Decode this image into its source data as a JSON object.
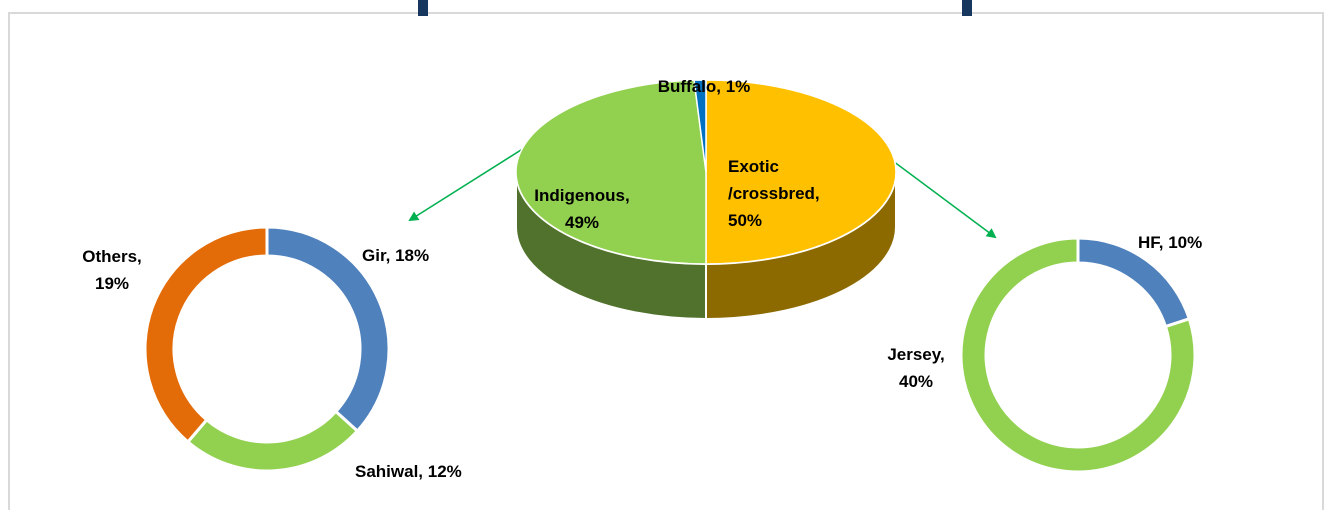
{
  "chart_data": [
    {
      "type": "pie3d",
      "values": [
        50,
        49,
        1
      ],
      "value_labels": [
        [
          "Exotic",
          "/crossbred,",
          "50%"
        ],
        [
          "Indigenous,",
          "49%"
        ],
        [
          "Buffalo, 1%"
        ]
      ],
      "colors": [
        "#ffc000",
        "#92d050",
        "#0070c0"
      ]
    },
    {
      "type": "donut",
      "values": [
        18,
        12,
        19
      ],
      "value_labels": [
        [
          "Gir, 18%"
        ],
        [
          "Sahiwal, 12%"
        ],
        [
          "Others,",
          "19%"
        ]
      ],
      "colors": [
        "#4f81bd",
        "#92d050",
        "#e36c09"
      ]
    },
    {
      "type": "donut",
      "values": [
        10,
        40
      ],
      "value_labels": [
        [
          "HF, 10%"
        ],
        [
          "Jersey,",
          "40%"
        ]
      ],
      "colors": [
        "#4f81bd",
        "#92d050"
      ]
    }
  ]
}
